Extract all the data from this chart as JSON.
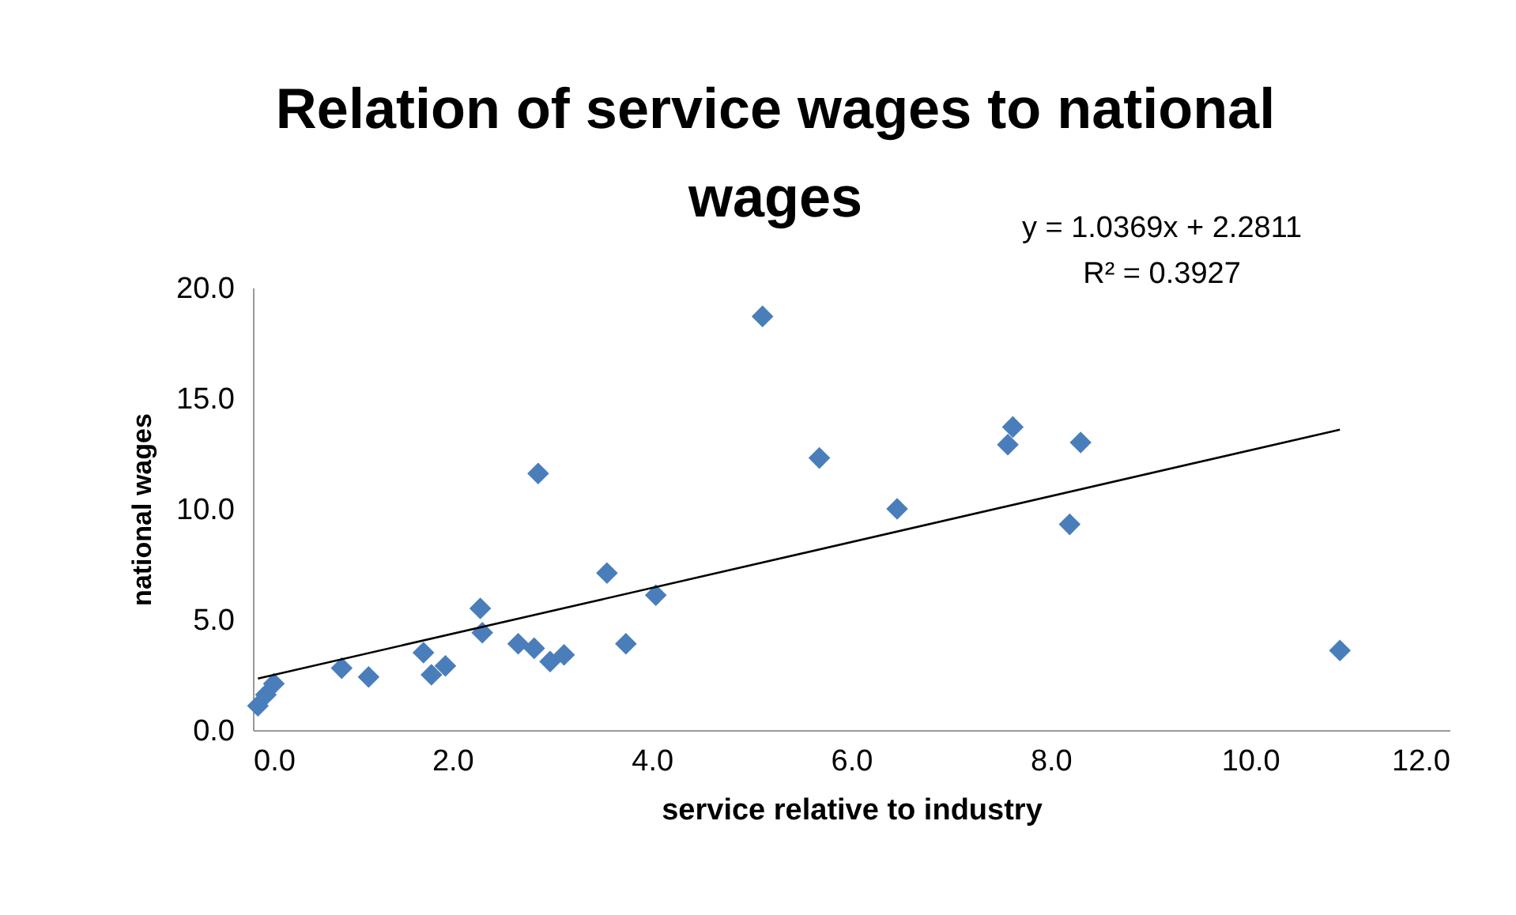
{
  "chart_data": {
    "type": "scatter",
    "title": "Relation of service wages to national wages",
    "xlabel": "service relative to industry",
    "ylabel": "national wages",
    "annotations": [
      "y = 1.0369x + 2.2811",
      "R² = 0.3927"
    ],
    "xlim": [
      0,
      12
    ],
    "xticks": [
      {
        "value": 0,
        "label": "0.0"
      },
      {
        "value": 2,
        "label": "2.0"
      },
      {
        "value": 4,
        "label": "4.0"
      },
      {
        "value": 6,
        "label": "6.0"
      },
      {
        "value": 8,
        "label": "8.0"
      },
      {
        "value": 10,
        "label": "10.0"
      },
      {
        "value": 12,
        "label": "12.0"
      }
    ],
    "ylim": [
      0,
      20
    ],
    "yticks": [
      {
        "value": 0,
        "label": "0.0"
      },
      {
        "value": 5,
        "label": "5.0"
      },
      {
        "value": 10,
        "label": "10.0"
      },
      {
        "value": 15,
        "label": "15.0"
      },
      {
        "value": 20,
        "label": "20.0"
      }
    ],
    "grid": false,
    "marker": "diamond",
    "series": [
      {
        "color": "#4a7ebb",
        "x": [
          0.05,
          0.13,
          0.21,
          0.89,
          1.16,
          1.71,
          1.79,
          1.93,
          2.28,
          2.3,
          2.66,
          2.82,
          2.98,
          3.12,
          2.86,
          3.55,
          3.74,
          4.04,
          5.11,
          5.68,
          6.46,
          7.57,
          7.62,
          8.3,
          8.19,
          10.9
        ],
        "values": [
          1.1,
          1.6,
          2.1,
          2.8,
          2.4,
          3.5,
          2.5,
          2.9,
          5.5,
          4.4,
          3.9,
          3.7,
          3.1,
          3.4,
          11.6,
          7.1,
          3.9,
          6.1,
          18.7,
          12.3,
          10.0,
          12.9,
          13.7,
          13.0,
          9.3,
          3.6
        ]
      },
      {
        "type": "line",
        "marker": "none",
        "color": "#000000",
        "x": [
          0.05,
          10.9
        ],
        "values": [
          2.33,
          13.58
        ]
      }
    ]
  }
}
